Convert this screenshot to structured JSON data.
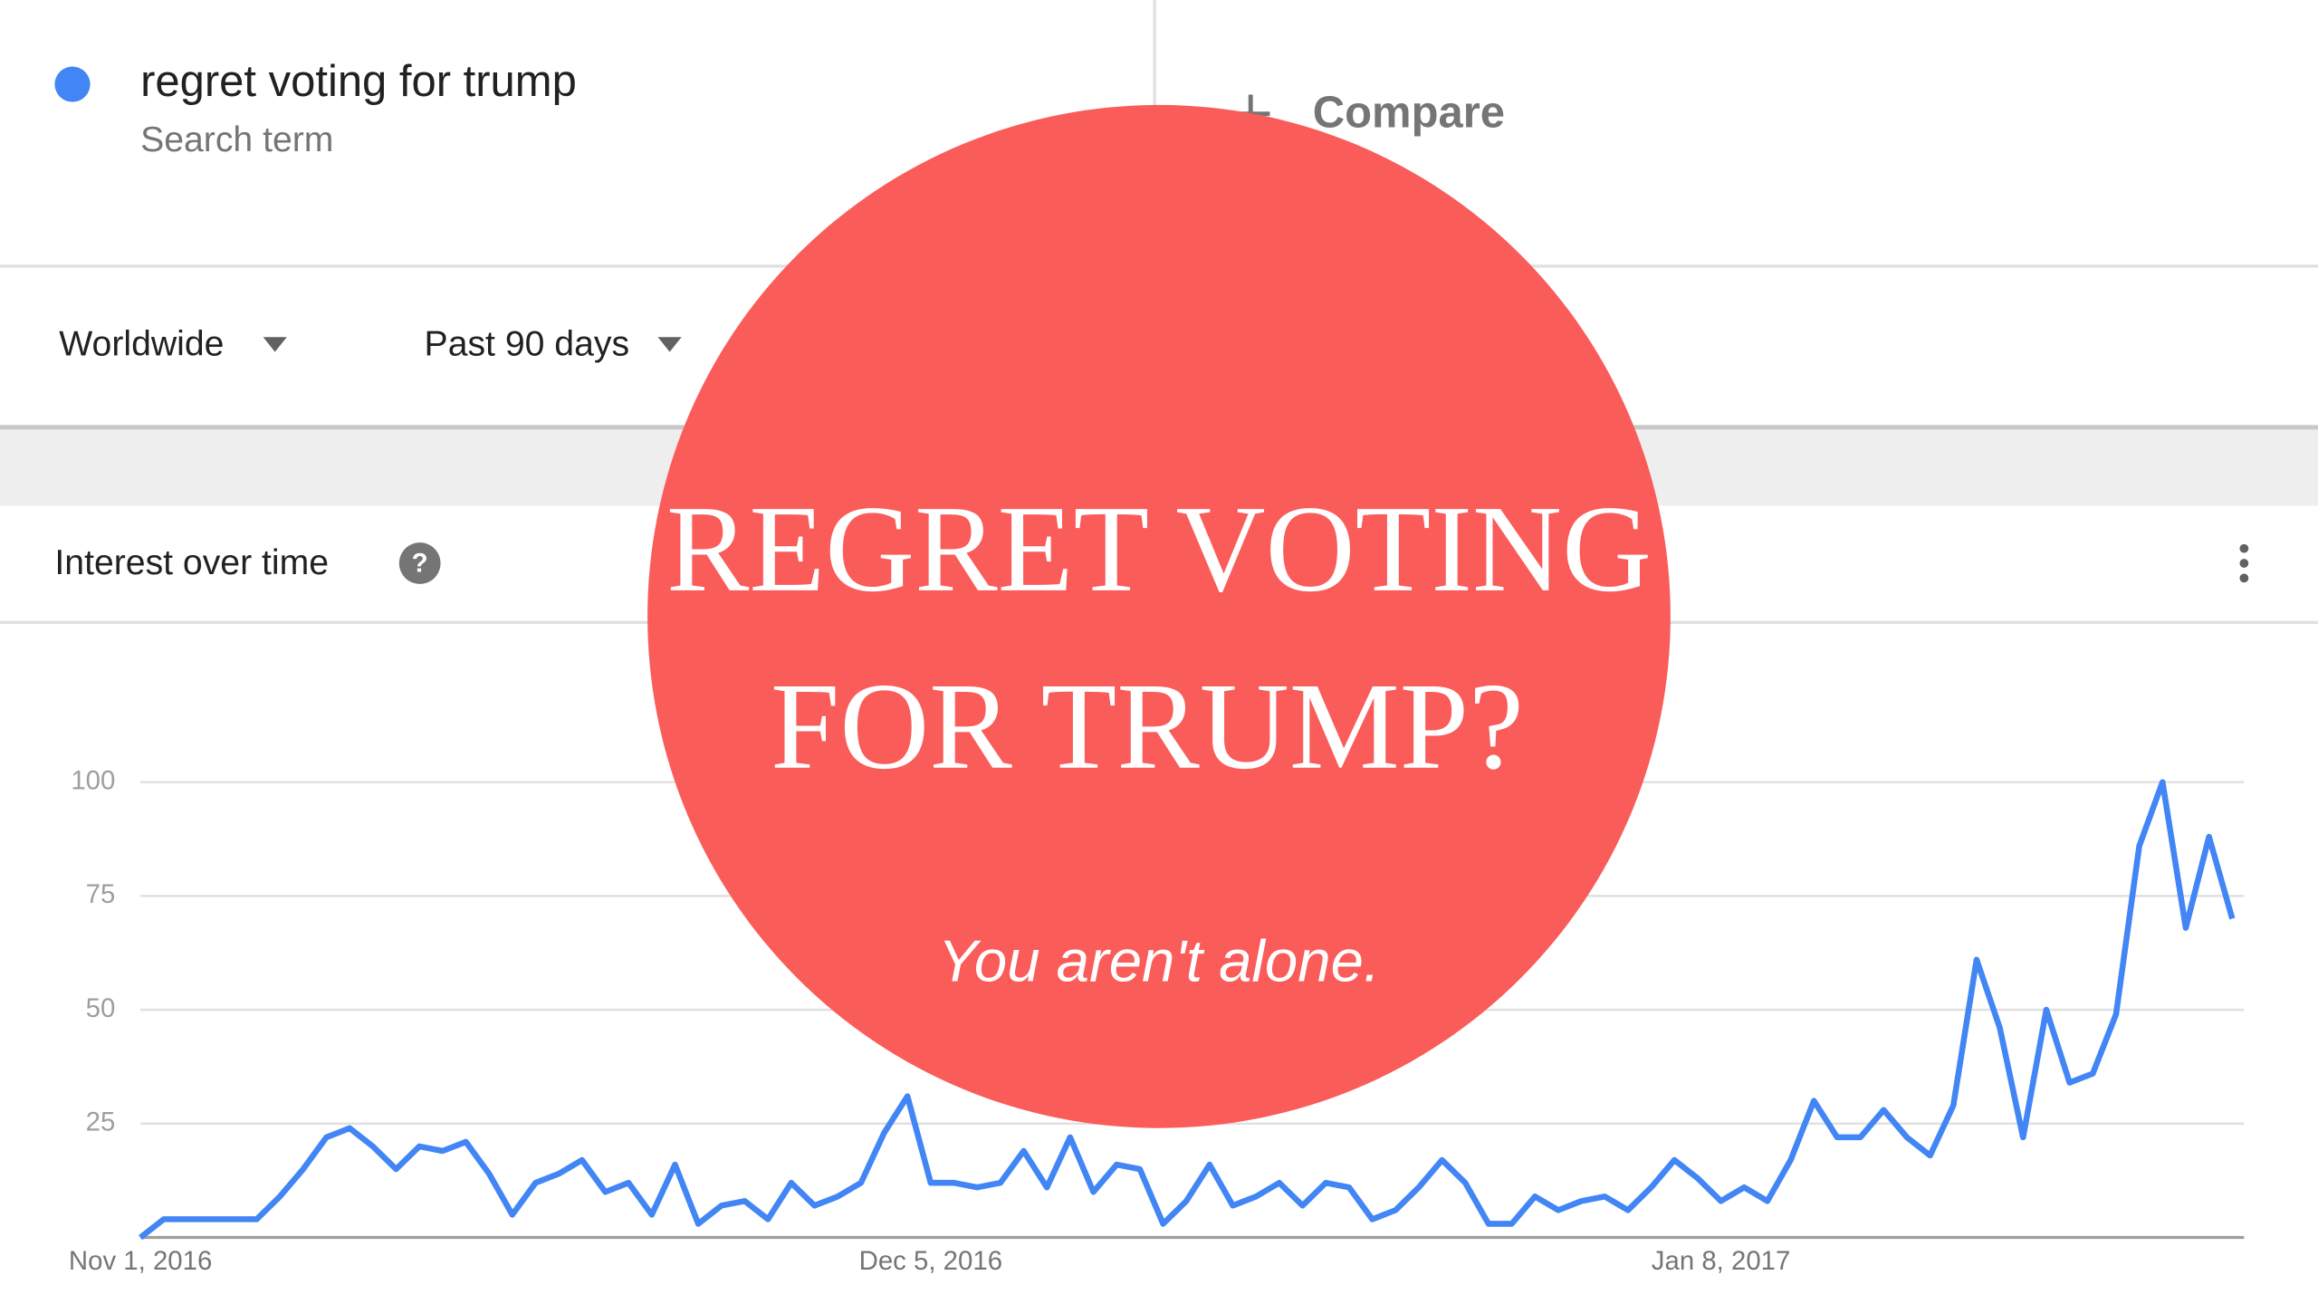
{
  "search": {
    "term": "regret voting for trump",
    "kind": "Search term",
    "compare": "Compare"
  },
  "filters": {
    "region": "Worldwide",
    "period": "Past 90 days"
  },
  "card": {
    "title": "Interest over time"
  },
  "overlay": {
    "line1": "REGRET VOTING",
    "line2": "FOR TRUMP?",
    "tagline": "You aren't alone."
  },
  "chart_data": {
    "type": "line",
    "categories": [
      "Nov 1, 2016",
      null,
      null,
      null,
      null,
      null,
      null,
      null,
      null,
      null,
      null,
      null,
      null,
      null,
      null,
      null,
      null,
      null,
      null,
      null,
      null,
      null,
      null,
      null,
      null,
      null,
      null,
      null,
      null,
      null,
      null,
      null,
      null,
      null,
      "Dec 5, 2016",
      null,
      null,
      null,
      null,
      null,
      null,
      null,
      null,
      null,
      null,
      null,
      null,
      null,
      null,
      null,
      null,
      null,
      null,
      null,
      null,
      null,
      null,
      null,
      null,
      null,
      null,
      null,
      null,
      null,
      null,
      null,
      null,
      null,
      "Jan 8, 2017",
      null,
      null,
      null,
      null,
      null,
      null,
      null,
      null,
      null,
      null,
      null,
      null,
      null,
      null,
      null,
      null,
      null,
      null,
      null,
      null,
      null,
      null
    ],
    "series": [
      {
        "name": "regret voting for trump",
        "color": "#4285f4",
        "values": [
          0,
          4,
          4,
          4,
          4,
          4,
          9,
          15,
          22,
          24,
          20,
          15,
          20,
          19,
          21,
          14,
          5,
          12,
          14,
          17,
          10,
          12,
          5,
          16,
          3,
          7,
          8,
          4,
          12,
          7,
          9,
          12,
          23,
          31,
          12,
          12,
          11,
          12,
          19,
          11,
          22,
          10,
          16,
          15,
          3,
          8,
          16,
          7,
          9,
          12,
          7,
          12,
          11,
          4,
          6,
          11,
          17,
          12,
          3,
          3,
          9,
          6,
          8,
          9,
          6,
          11,
          17,
          13,
          8,
          11,
          8,
          17,
          30,
          22,
          22,
          28,
          22,
          18,
          29,
          61,
          46,
          22,
          50,
          34,
          36,
          49,
          86,
          100,
          68,
          88,
          70
        ]
      }
    ],
    "ylim": [
      0,
      100
    ],
    "yticks": [
      25,
      50,
      75,
      100
    ],
    "grid": true
  }
}
